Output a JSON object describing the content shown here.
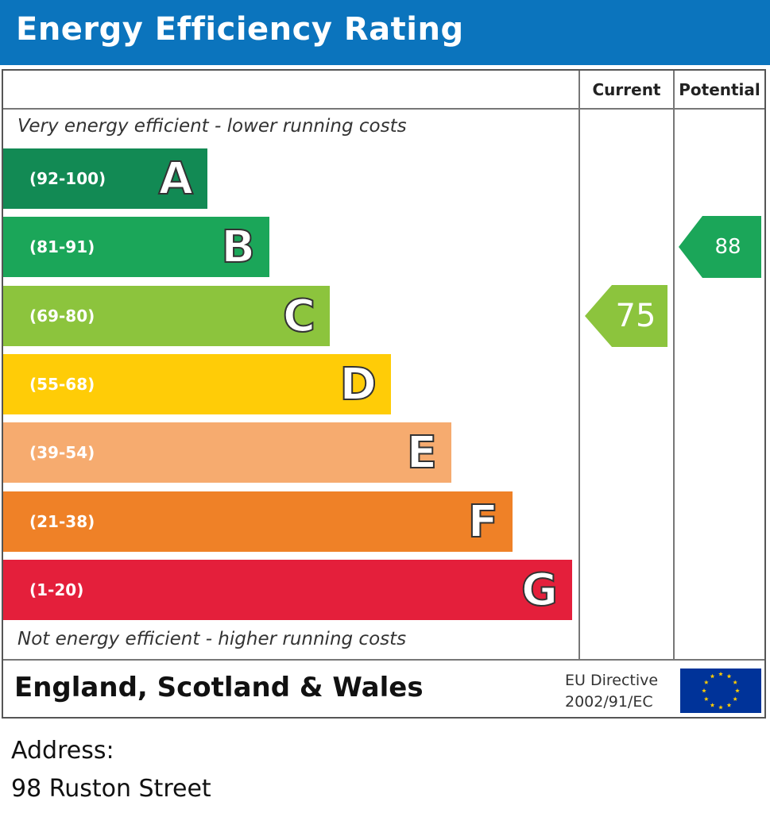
{
  "header": {
    "title": "Energy Efficiency Rating"
  },
  "columns": {
    "current": "Current",
    "potential": "Potential"
  },
  "notes": {
    "top": "Very energy efficient - lower running costs",
    "bottom": "Not energy efficient - higher running costs"
  },
  "chart_data": {
    "type": "bar",
    "title": "Energy Efficiency Rating",
    "bands": [
      {
        "letter": "A",
        "range": "(92-100)",
        "color": "#128a54"
      },
      {
        "letter": "B",
        "range": "(81-91)",
        "color": "#1ba659"
      },
      {
        "letter": "C",
        "range": "(69-80)",
        "color": "#8cc43d"
      },
      {
        "letter": "D",
        "range": "(55-68)",
        "color": "#ffcc07"
      },
      {
        "letter": "E",
        "range": "(39-54)",
        "color": "#f6ab6f"
      },
      {
        "letter": "F",
        "range": "(21-38)",
        "color": "#ef8127"
      },
      {
        "letter": "G",
        "range": "(1-20)",
        "color": "#e41f3b"
      }
    ],
    "current": {
      "value": "75",
      "band": "C",
      "color": "#8cc43d"
    },
    "potential": {
      "value": "88",
      "band": "B",
      "color": "#1ba659"
    }
  },
  "footer": {
    "country": "England, Scotland & Wales",
    "eu_directive_line1": "EU Directive",
    "eu_directive_line2": "2002/91/EC"
  },
  "address": {
    "label": "Address:",
    "value": "98 Ruston Street"
  }
}
